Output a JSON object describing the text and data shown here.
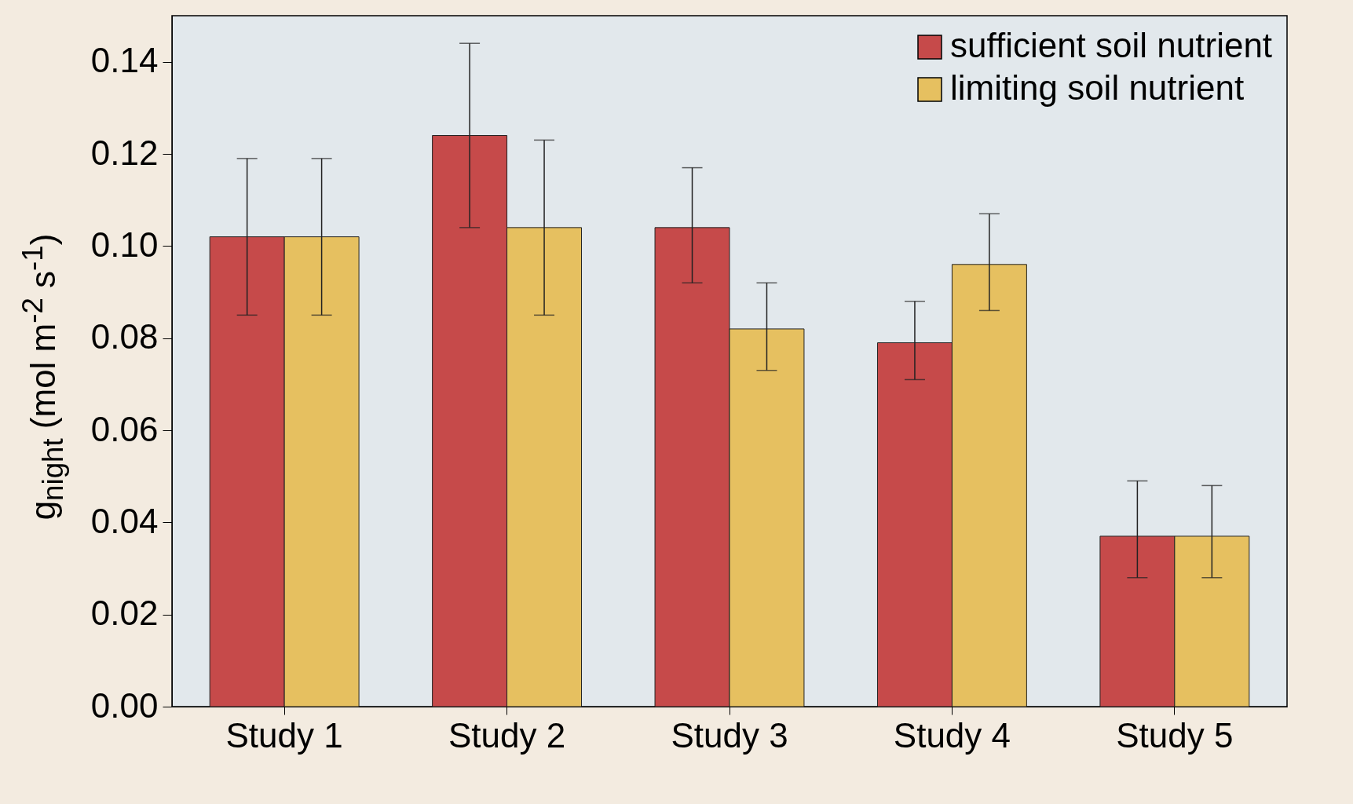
{
  "chart_data": {
    "type": "bar",
    "ylabel": "g$_{night}$ (mol m$^{-2}$ s$^{-1}$)",
    "categories": [
      "Study 1",
      "Study 2",
      "Study 3",
      "Study 4",
      "Study 5"
    ],
    "ylim": [
      0,
      0.15
    ],
    "yticks": [
      {
        "value": 0,
        "label": "0.00"
      },
      0.02,
      0.04,
      0.06,
      0.08,
      {
        "value": 0.1,
        "label": "0.10"
      },
      0.12,
      0.14
    ],
    "grid": false,
    "legend": "top right",
    "series": [
      {
        "name": "sufficient soil nutrient",
        "color": "#c64a4a",
        "values": [
          0.102,
          0.124,
          0.104,
          0.079,
          0.037
        ],
        "errors": [
          [
            0.085,
            0.119
          ],
          [
            0.104,
            0.144
          ],
          [
            0.092,
            0.117
          ],
          [
            0.071,
            0.088
          ],
          [
            0.028,
            0.049
          ]
        ]
      },
      {
        "name": "limiting soil nutrient",
        "color": "#e6c060",
        "values": [
          0.102,
          0.104,
          0.082,
          0.096,
          0.037
        ],
        "errors": [
          [
            0.085,
            0.119
          ],
          [
            0.085,
            0.123
          ],
          [
            0.073,
            0.092
          ],
          [
            0.086,
            0.107
          ],
          [
            0.028,
            0.048
          ]
        ]
      }
    ]
  }
}
